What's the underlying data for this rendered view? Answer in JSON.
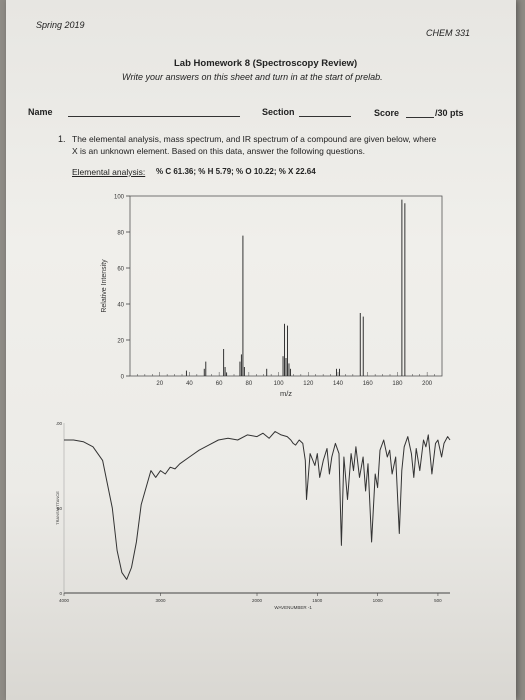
{
  "header": {
    "term": "Spring 2019",
    "course": "CHEM 331"
  },
  "title": {
    "main": "Lab Homework 8 (Spectroscopy Review)",
    "instructions": "Write your answers on this sheet and turn in at the start of prelab."
  },
  "fields": {
    "name_label": "Name",
    "section_label": "Section",
    "score_label": "Score",
    "score_total": "/30 pts"
  },
  "question": {
    "number": "1.",
    "line1": "The elemental analysis, mass spectrum, and IR spectrum of a compound are given below, where",
    "line2": "X is an unknown element.  Based on this data, answer the following questions."
  },
  "elemental_analysis": {
    "label": "Elemental analysis:",
    "values": "% C 61.36; % H 5.79; % O 10.22; % X 22.64"
  },
  "chart_data": [
    {
      "type": "bar",
      "xlabel": "m/z",
      "ylabel": "Relative Intensity",
      "xlim": [
        0,
        210
      ],
      "ylim": [
        0,
        100
      ],
      "xticks": [
        20,
        40,
        60,
        80,
        100,
        120,
        140,
        160,
        180,
        200
      ],
      "yticks": [
        0,
        20,
        40,
        60,
        80,
        100
      ],
      "peaks": [
        {
          "x": 38,
          "y": 3
        },
        {
          "x": 50,
          "y": 4
        },
        {
          "x": 51,
          "y": 8
        },
        {
          "x": 63,
          "y": 15
        },
        {
          "x": 64,
          "y": 5
        },
        {
          "x": 65,
          "y": 2
        },
        {
          "x": 74,
          "y": 8
        },
        {
          "x": 75,
          "y": 12
        },
        {
          "x": 76,
          "y": 78
        },
        {
          "x": 77,
          "y": 5
        },
        {
          "x": 92,
          "y": 4
        },
        {
          "x": 103,
          "y": 11
        },
        {
          "x": 104,
          "y": 29
        },
        {
          "x": 105,
          "y": 10
        },
        {
          "x": 106,
          "y": 28
        },
        {
          "x": 107,
          "y": 7
        },
        {
          "x": 108,
          "y": 4
        },
        {
          "x": 139,
          "y": 4
        },
        {
          "x": 141,
          "y": 4
        },
        {
          "x": 155,
          "y": 35
        },
        {
          "x": 157,
          "y": 33
        },
        {
          "x": 183,
          "y": 98
        },
        {
          "x": 185,
          "y": 96
        }
      ]
    },
    {
      "type": "line",
      "xlabel": "WAVENUMBER -1",
      "ylabel": "TRANSMITTANCE",
      "xlim": [
        4000,
        400
      ],
      "ylim": [
        0,
        100
      ],
      "xticks": [
        4000,
        3000,
        2000,
        1500,
        1000,
        500
      ],
      "yticks": [
        0,
        50,
        100
      ],
      "series": [
        {
          "x": [
            4000,
            3900,
            3800,
            3700,
            3600,
            3500,
            3450,
            3400,
            3350,
            3300,
            3250,
            3200,
            3100,
            3050,
            3000,
            2950,
            2900,
            2850,
            2800,
            2700,
            2600,
            2500,
            2400,
            2300,
            2200,
            2100,
            2000,
            1950,
            1900,
            1850,
            1800,
            1750,
            1720,
            1700,
            1680,
            1650,
            1620,
            1600,
            1590,
            1560,
            1520,
            1500,
            1480,
            1450,
            1420,
            1400,
            1380,
            1350,
            1320,
            1300,
            1280,
            1250,
            1220,
            1200,
            1180,
            1150,
            1120,
            1100,
            1080,
            1050,
            1020,
            1000,
            980,
            950,
            920,
            900,
            880,
            850,
            820,
            800,
            780,
            750,
            720,
            700,
            680,
            650,
            620,
            600,
            580,
            550,
            520,
            500,
            470,
            450,
            420,
            400
          ],
          "y": [
            90,
            90,
            89,
            86,
            78,
            50,
            25,
            12,
            8,
            15,
            30,
            52,
            72,
            68,
            72,
            70,
            74,
            73,
            76,
            80,
            84,
            87,
            90,
            91,
            90,
            93,
            92,
            94,
            91,
            95,
            93,
            92,
            90,
            88,
            87,
            90,
            88,
            78,
            55,
            82,
            75,
            82,
            68,
            78,
            85,
            70,
            80,
            88,
            82,
            28,
            80,
            55,
            82,
            72,
            86,
            68,
            80,
            60,
            76,
            30,
            70,
            62,
            84,
            90,
            80,
            84,
            70,
            80,
            35,
            72,
            86,
            92,
            82,
            68,
            85,
            72,
            90,
            86,
            93,
            70,
            88,
            90,
            80,
            88,
            92,
            90
          ]
        }
      ]
    }
  ]
}
